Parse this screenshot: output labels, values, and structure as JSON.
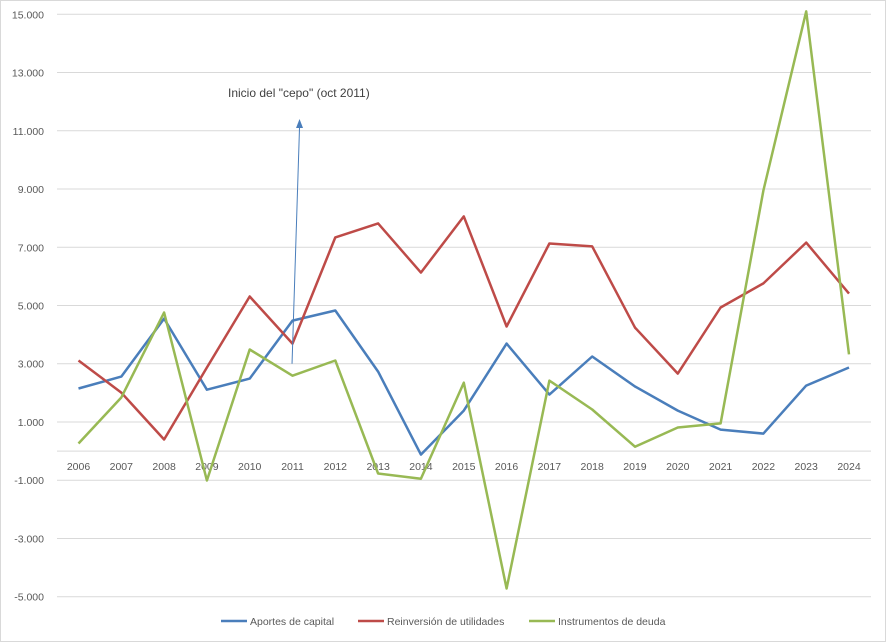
{
  "chart_data": {
    "type": "line",
    "title": "",
    "xlabel": "",
    "ylabel": "",
    "ylim": [
      -5000,
      15000
    ],
    "yticks": [
      15000,
      13000,
      11000,
      9000,
      7000,
      5000,
      3000,
      1000,
      -1000,
      -3000,
      -5000
    ],
    "ytick_labels": [
      "15.000",
      "13.000",
      "11.000",
      "9.000",
      "7.000",
      "5.000",
      "3.000",
      "1.000",
      "-1.000",
      "-3.000",
      "-5.000"
    ],
    "grid": true,
    "legend_position": "bottom",
    "categories": [
      "2006",
      "2007",
      "2008",
      "2009",
      "2010",
      "2011",
      "2012",
      "2013",
      "2014",
      "2015",
      "2016",
      "2017",
      "2018",
      "2019",
      "2020",
      "2021",
      "2022",
      "2023",
      "2024"
    ],
    "series": [
      {
        "name": "Aportes de capital",
        "color": "#4a7ebb",
        "values": [
          2150,
          2560,
          4550,
          2110,
          2490,
          4480,
          4830,
          2730,
          -120,
          1390,
          3690,
          1940,
          3250,
          2220,
          1390,
          740,
          600,
          2250,
          2870
        ]
      },
      {
        "name": "Reinversión de utilidades",
        "color": "#be4b48",
        "values": [
          3110,
          2010,
          400,
          2870,
          5310,
          3690,
          7340,
          7820,
          6130,
          8060,
          4280,
          7130,
          7030,
          4240,
          2660,
          4930,
          5760,
          7160,
          5410
        ]
      },
      {
        "name": "Instrumentos de deuda",
        "color": "#98b954",
        "values": [
          260,
          1840,
          4760,
          -1010,
          3490,
          2590,
          3110,
          -770,
          -950,
          2350,
          -4720,
          2420,
          1430,
          150,
          810,
          950,
          8950,
          15100,
          3320
        ]
      }
    ],
    "annotations": [
      {
        "text": "Inicio del \"cepo\" (oct 2011)",
        "arrow_from": {
          "x": "2011",
          "y": 3000
        },
        "arrow_to": {
          "x": "2011",
          "y": 11300
        },
        "color": "#4a7ebb"
      }
    ]
  }
}
